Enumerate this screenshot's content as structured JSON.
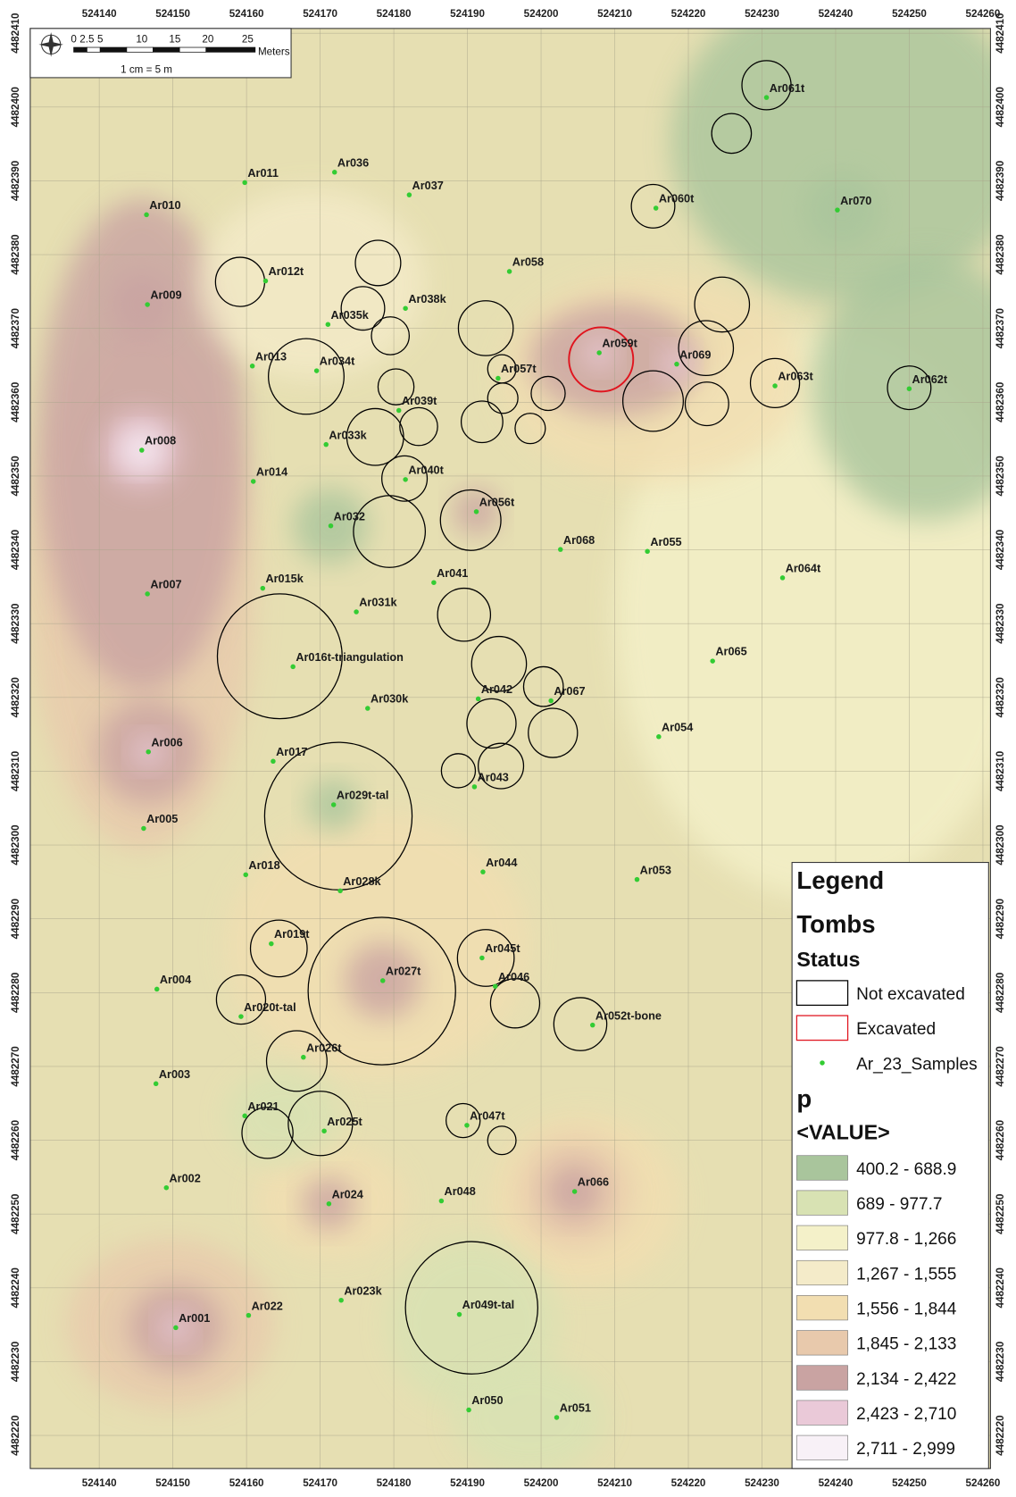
{
  "map": {
    "x_ticks": [
      524140,
      524150,
      524160,
      524170,
      524180,
      524190,
      524200,
      524210,
      524220,
      524230,
      524240,
      524250,
      524260
    ],
    "y_ticks": [
      4482410,
      4482400,
      4482390,
      4482380,
      4482370,
      4482360,
      4482350,
      4482340,
      4482330,
      4482320,
      4482310,
      4482300,
      4482290,
      4482280,
      4482270,
      4482260,
      4482250,
      4482240,
      4482230,
      4482220
    ],
    "scale_bar": {
      "labels": [
        "0",
        "2.5",
        "5",
        "10",
        "15",
        "20",
        "25"
      ],
      "unit": "Meters",
      "ratio": "1 cm = 5 m"
    },
    "samples": [
      "Ar001",
      "Ar002",
      "Ar003",
      "Ar004",
      "Ar005",
      "Ar006",
      "Ar007",
      "Ar008",
      "Ar009",
      "Ar010",
      "Ar011",
      "Ar012t",
      "Ar013",
      "Ar014",
      "Ar015k",
      "Ar016t-triangulation",
      "Ar017",
      "Ar018",
      "Ar019t",
      "Ar020t-tal",
      "Ar021",
      "Ar022",
      "Ar023k",
      "Ar024",
      "Ar025t",
      "Ar026t",
      "Ar027t",
      "Ar028k",
      "Ar029t-tal",
      "Ar030k",
      "Ar031k",
      "Ar032",
      "Ar033k",
      "Ar034t",
      "Ar035k",
      "Ar036",
      "Ar037",
      "Ar038k",
      "Ar039t",
      "Ar040t",
      "Ar041",
      "Ar042",
      "Ar043",
      "Ar044",
      "Ar045t",
      "Ar046",
      "Ar047t",
      "Ar048",
      "Ar049t-tal",
      "Ar050",
      "Ar051",
      "Ar052t-bone",
      "Ar053",
      "Ar054",
      "Ar055",
      "Ar056t",
      "Ar057t",
      "Ar058",
      "Ar059t",
      "Ar060t",
      "Ar061t",
      "Ar062t",
      "Ar063t",
      "Ar064t",
      "Ar065",
      "Ar066",
      "Ar067",
      "Ar068",
      "Ar069",
      "Ar070"
    ],
    "legend": {
      "title": "Legend",
      "layer": "Tombs",
      "field": "Status",
      "status": [
        {
          "label": "Not excavated",
          "color": "#000000"
        },
        {
          "label": "Excavated",
          "color": "#e0141e"
        }
      ],
      "points": {
        "label": "Ar_23_Samples",
        "color": "#33cc33"
      },
      "raster": "p",
      "raster_field": "<VALUE>",
      "classes": [
        {
          "label": "400.2 - 688.9",
          "color": "#a9c59c"
        },
        {
          "label": "689 - 977.7",
          "color": "#d8e2b3"
        },
        {
          "label": "977.8 - 1,266",
          "color": "#f4f1c9"
        },
        {
          "label": "1,267 - 1,555",
          "color": "#f4ebc9"
        },
        {
          "label": "1,556 - 1,844",
          "color": "#f2deb1"
        },
        {
          "label": "1,845 - 2,133",
          "color": "#e8c9ac"
        },
        {
          "label": "2,134 - 2,422",
          "color": "#c9a3a2"
        },
        {
          "label": "2,423 - 2,710",
          "color": "#eac9d8"
        },
        {
          "label": "2,711 - 2,999",
          "color": "#f8f1f7"
        }
      ]
    }
  }
}
